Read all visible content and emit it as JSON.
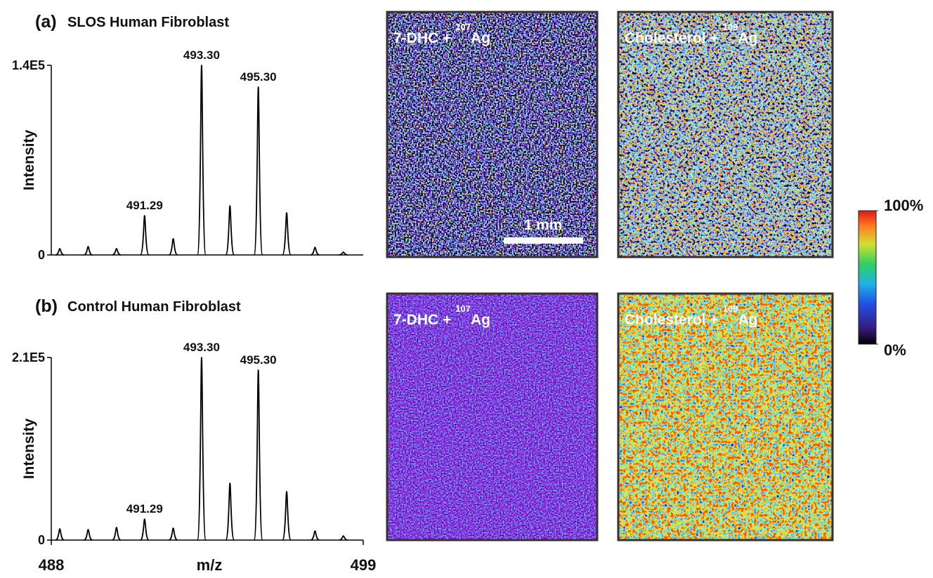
{
  "chart_data": [
    {
      "type": "spectrum",
      "panel": "(a)",
      "title": "SLOS Human Fibroblast",
      "ylabel": "Intensity",
      "color": "#000000",
      "x": [
        488.3,
        489.3,
        490.3,
        491.29,
        492.3,
        493.3,
        494.3,
        495.3,
        496.3,
        497.3,
        498.3
      ],
      "x_labels": [
        null,
        null,
        null,
        "491.29",
        null,
        "493.30",
        null,
        "495.30",
        null,
        null,
        null
      ],
      "values": [
        4700,
        6200,
        4700,
        29000,
        12000,
        140000,
        36300,
        124000,
        31100,
        5700,
        2100
      ],
      "xlim": [
        488,
        499
      ],
      "ylim": [
        0,
        140000
      ],
      "yticks": [
        0,
        {
          "value": 140000,
          "label": "1.4E5"
        }
      ]
    },
    {
      "type": "spectrum",
      "panel": "(b)",
      "title": "Control Human Fibroblast",
      "ylabel": "Intensity",
      "xlabel": "m/z",
      "color": "#000000",
      "x": [
        488.3,
        489.3,
        490.3,
        491.29,
        492.3,
        493.3,
        494.3,
        495.3,
        496.3,
        497.3,
        498.3
      ],
      "x_labels": [
        null,
        null,
        null,
        "491.29",
        null,
        "493.30",
        null,
        "495.30",
        null,
        null,
        null
      ],
      "values": [
        12900,
        12100,
        14500,
        24200,
        13700,
        210000,
        65400,
        195500,
        55700,
        10500,
        4800
      ],
      "xlim": [
        488,
        499
      ],
      "ylim": [
        0,
        210000
      ],
      "yticks": [
        0,
        {
          "value": 210000,
          "label": "2.1E5"
        }
      ],
      "xticks": [
        488,
        499
      ]
    }
  ],
  "images": [
    {
      "label": "7-DHC +",
      "isotope": "107",
      "element": "Ag"
    },
    {
      "label": "Cholesterol +",
      "isotope": "109",
      "element": "Ag"
    },
    {
      "label": "7-DHC +",
      "isotope": "107",
      "element": "Ag"
    },
    {
      "label": "Cholesterol +",
      "isotope": "109",
      "element": "Ag"
    }
  ],
  "scale_bar": "1 mm",
  "colorbar": {
    "ticks": [
      {
        "value": 100,
        "label": "100%"
      },
      {
        "value": 0,
        "label": "0%"
      }
    ]
  }
}
